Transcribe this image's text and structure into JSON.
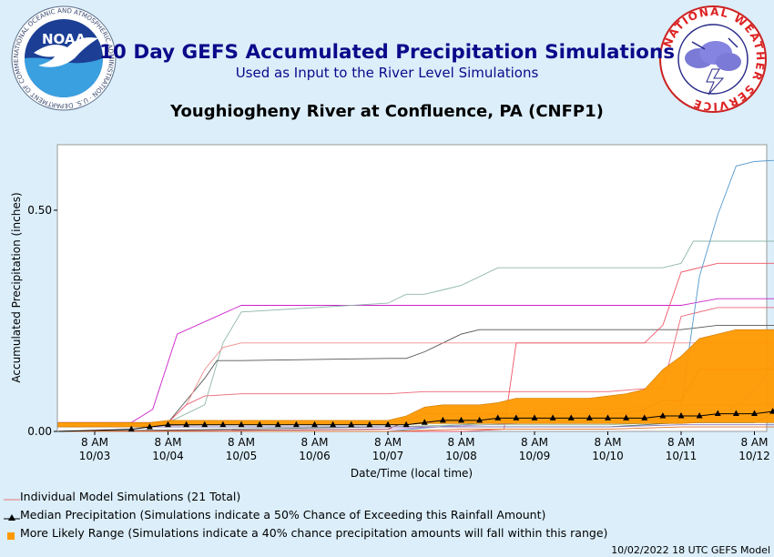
{
  "header": {
    "title": "10 Day GEFS Accumulated Precipitation Simulations",
    "subtitle": "Used as Input to the River Level Simulations",
    "station": "Youghiogheny River at Confluence, PA (CNFP1)"
  },
  "logos": {
    "noaa": {
      "label": "NOAA",
      "ring_text": "NATIONAL OCEANIC AND ATMOSPHERIC ADMINISTRATION · U.S. DEPARTMENT OF COMMERCE"
    },
    "nws": {
      "ring_text": "NATIONAL WEATHER SERVICE"
    }
  },
  "legend": {
    "individual": "Individual Model Simulations (21 Total)",
    "median": "Median Precipitation (Simulations indicate a 50% Chance of Exceeding this Rainfall Amount)",
    "range": "More Likely Range (Simulations indicate a 40% chance precipitation amounts will fall within this range)"
  },
  "footer": "10/02/2022 18 UTC GEFS Model",
  "colors": {
    "range": "#ff9900",
    "median": "#000000",
    "title": "#0a0a8a",
    "background": "#dbeefa"
  },
  "chart_data": {
    "type": "line",
    "ylabel": "Accumulated Precipitation (inches)",
    "xlabel": "Date/Time (local time)",
    "ylim": [
      0.0,
      0.64
    ],
    "xlim": [
      -12,
      228
    ],
    "yticks": [
      {
        "value": 0.0,
        "label": "0.00"
      },
      {
        "value": 0.5,
        "label": "0.50"
      }
    ],
    "xticks": [
      {
        "value": 0,
        "hour": "8 AM",
        "date": "10/03"
      },
      {
        "value": 24,
        "hour": "8 AM",
        "date": "10/04"
      },
      {
        "value": 48,
        "hour": "8 AM",
        "date": "10/05"
      },
      {
        "value": 72,
        "hour": "8 AM",
        "date": "10/06"
      },
      {
        "value": 96,
        "hour": "8 AM",
        "date": "10/07"
      },
      {
        "value": 120,
        "hour": "8 AM",
        "date": "10/08"
      },
      {
        "value": 144,
        "hour": "8 AM",
        "date": "10/09"
      },
      {
        "value": 168,
        "hour": "8 AM",
        "date": "10/10"
      },
      {
        "value": 192,
        "hour": "8 AM",
        "date": "10/11"
      },
      {
        "value": 216,
        "hour": "8 AM",
        "date": "10/12"
      }
    ],
    "range_band": {
      "x": [
        -12,
        6,
        12,
        18,
        24,
        30,
        36,
        42,
        48,
        54,
        60,
        66,
        72,
        78,
        84,
        90,
        96,
        102,
        108,
        114,
        120,
        126,
        132,
        138,
        144,
        150,
        156,
        162,
        168,
        174,
        180,
        186,
        192,
        198,
        204,
        210,
        216,
        222,
        228
      ],
      "lower": [
        0.01,
        0.01,
        0.01,
        0.01,
        0.015,
        0.015,
        0.015,
        0.015,
        0.015,
        0.015,
        0.015,
        0.015,
        0.015,
        0.015,
        0.015,
        0.015,
        0.015,
        0.015,
        0.018,
        0.018,
        0.018,
        0.018,
        0.018,
        0.018,
        0.018,
        0.018,
        0.018,
        0.018,
        0.018,
        0.018,
        0.018,
        0.018,
        0.018,
        0.02,
        0.02,
        0.02,
        0.02,
        0.02,
        0.02
      ],
      "upper": [
        0.02,
        0.02,
        0.02,
        0.02,
        0.025,
        0.025,
        0.025,
        0.025,
        0.025,
        0.025,
        0.025,
        0.025,
        0.025,
        0.025,
        0.025,
        0.025,
        0.025,
        0.035,
        0.055,
        0.06,
        0.06,
        0.06,
        0.065,
        0.075,
        0.075,
        0.075,
        0.075,
        0.075,
        0.08,
        0.085,
        0.095,
        0.14,
        0.17,
        0.21,
        0.22,
        0.23,
        0.23,
        0.23,
        0.23
      ]
    },
    "median": {
      "x": [
        -12,
        12,
        18,
        24,
        30,
        36,
        42,
        48,
        54,
        60,
        66,
        72,
        78,
        84,
        90,
        96,
        102,
        108,
        114,
        120,
        126,
        132,
        138,
        144,
        150,
        156,
        162,
        168,
        174,
        180,
        186,
        192,
        198,
        204,
        210,
        216,
        222,
        228
      ],
      "values": [
        0.0,
        0.005,
        0.01,
        0.015,
        0.015,
        0.015,
        0.015,
        0.015,
        0.015,
        0.015,
        0.015,
        0.015,
        0.015,
        0.015,
        0.015,
        0.015,
        0.015,
        0.02,
        0.025,
        0.025,
        0.025,
        0.03,
        0.03,
        0.03,
        0.03,
        0.03,
        0.03,
        0.03,
        0.03,
        0.03,
        0.035,
        0.035,
        0.035,
        0.04,
        0.04,
        0.04,
        0.045,
        0.06
      ]
    },
    "series": [
      {
        "color": "#cc22cc",
        "x": [
          -12,
          12,
          19,
          27,
          48,
          72,
          96,
          120,
          144,
          168,
          192,
          204,
          228
        ],
        "values": [
          0.02,
          0.02,
          0.05,
          0.22,
          0.285,
          0.285,
          0.285,
          0.285,
          0.285,
          0.285,
          0.285,
          0.3,
          0.3
        ]
      },
      {
        "color": "#90b8a8",
        "x": [
          -12,
          24,
          36,
          42,
          48,
          96,
          102,
          108,
          114,
          120,
          132,
          144,
          180,
          186,
          192,
          196,
          228
        ],
        "values": [
          0.01,
          0.02,
          0.06,
          0.2,
          0.27,
          0.29,
          0.31,
          0.31,
          0.32,
          0.33,
          0.37,
          0.37,
          0.37,
          0.37,
          0.38,
          0.43,
          0.43
        ]
      },
      {
        "color": "#555555",
        "x": [
          -12,
          24,
          30,
          36,
          40,
          48,
          96,
          102,
          108,
          114,
          120,
          126,
          144,
          168,
          192,
          204,
          228
        ],
        "values": [
          0.01,
          0.02,
          0.07,
          0.12,
          0.16,
          0.16,
          0.165,
          0.165,
          0.18,
          0.2,
          0.22,
          0.23,
          0.23,
          0.23,
          0.23,
          0.24,
          0.24
        ]
      },
      {
        "color": "#f09090",
        "x": [
          -12,
          24,
          30,
          36,
          42,
          48,
          96,
          120,
          144,
          168,
          192,
          204,
          228
        ],
        "values": [
          0.02,
          0.02,
          0.06,
          0.14,
          0.19,
          0.2,
          0.2,
          0.2,
          0.2,
          0.2,
          0.2,
          0.2,
          0.2
        ]
      },
      {
        "color": "#ee6677",
        "x": [
          -12,
          24,
          30,
          36,
          48,
          72,
          96,
          108,
          120,
          144,
          168,
          186,
          192,
          204,
          228
        ],
        "values": [
          0.02,
          0.02,
          0.06,
          0.08,
          0.085,
          0.085,
          0.085,
          0.09,
          0.09,
          0.09,
          0.09,
          0.1,
          0.26,
          0.28,
          0.28
        ]
      },
      {
        "color": "#ee5566",
        "x": [
          -12,
          96,
          120,
          134,
          138,
          144,
          168,
          180,
          186,
          192,
          204,
          228
        ],
        "values": [
          0.0,
          0.0,
          0.0,
          0.005,
          0.2,
          0.2,
          0.2,
          0.2,
          0.24,
          0.36,
          0.38,
          0.38
        ]
      },
      {
        "color": "#5599cc",
        "x": [
          -12,
          96,
          144,
          168,
          180,
          186,
          192,
          198,
          204,
          210,
          216,
          228
        ],
        "values": [
          0.0,
          0.0,
          0.03,
          0.03,
          0.03,
          0.03,
          0.06,
          0.35,
          0.49,
          0.6,
          0.61,
          0.615
        ]
      },
      {
        "color": "#bb88dd",
        "x": [
          -12,
          96,
          144,
          168,
          192,
          204,
          216,
          228
        ],
        "values": [
          0.0,
          0.005,
          0.02,
          0.02,
          0.03,
          0.03,
          0.09,
          0.21
        ]
      },
      {
        "color": "#557766",
        "x": [
          -12,
          96,
          120,
          168,
          192,
          216,
          222,
          228
        ],
        "values": [
          0.0,
          0.01,
          0.01,
          0.01,
          0.02,
          0.02,
          0.04,
          0.14
        ]
      },
      {
        "color": "#aa4455",
        "x": [
          -12,
          96,
          108,
          168,
          174,
          180,
          186,
          192,
          198,
          228
        ],
        "values": [
          0.0,
          0.005,
          0.04,
          0.04,
          0.04,
          0.05,
          0.07,
          0.07,
          0.14,
          0.14
        ]
      },
      {
        "color": "#cc9999",
        "x": [
          -12,
          96,
          120,
          150,
          168,
          186,
          192,
          228
        ],
        "values": [
          0.01,
          0.02,
          0.03,
          0.05,
          0.05,
          0.06,
          0.06,
          0.06
        ]
      },
      {
        "color": "#99bb88",
        "x": [
          -12,
          96,
          120,
          168,
          186,
          198,
          216,
          228
        ],
        "values": [
          0.01,
          0.01,
          0.015,
          0.015,
          0.02,
          0.02,
          0.03,
          0.03
        ]
      },
      {
        "color": "#8877bb",
        "x": [
          -12,
          96,
          120,
          168,
          192,
          228
        ],
        "values": [
          0.01,
          0.01,
          0.01,
          0.01,
          0.015,
          0.015
        ]
      },
      {
        "color": "#dd7733",
        "x": [
          -12,
          96,
          120,
          168,
          192,
          228
        ],
        "values": [
          0.0,
          0.0,
          0.005,
          0.005,
          0.01,
          0.01
        ]
      }
    ]
  }
}
